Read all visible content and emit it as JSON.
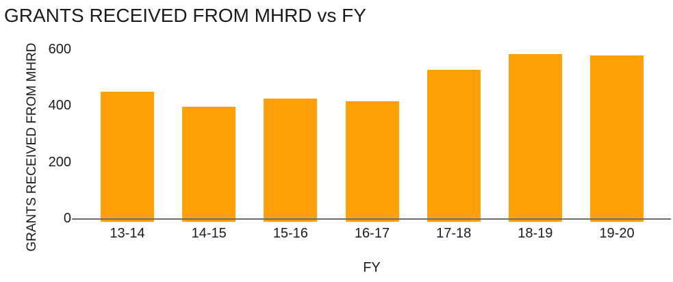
{
  "chart_data": {
    "type": "bar",
    "title": "GRANTS RECEIVED FROM MHRD vs FY",
    "xlabel": "FY",
    "ylabel": "GRANTS RECEIVED FROM MHRD",
    "categories": [
      "13-14",
      "14-15",
      "15-16",
      "16-17",
      "17-18",
      "18-19",
      "19-20"
    ],
    "values": [
      450,
      395,
      425,
      415,
      527,
      583,
      577
    ],
    "yticks": [
      0,
      200,
      400,
      600
    ],
    "ylim": [
      0,
      600
    ],
    "grid": false,
    "legend": "none",
    "colors": {
      "bar": "#ffa008",
      "axis_line": "#6b6b6b",
      "text": "#1b1b1b"
    }
  }
}
